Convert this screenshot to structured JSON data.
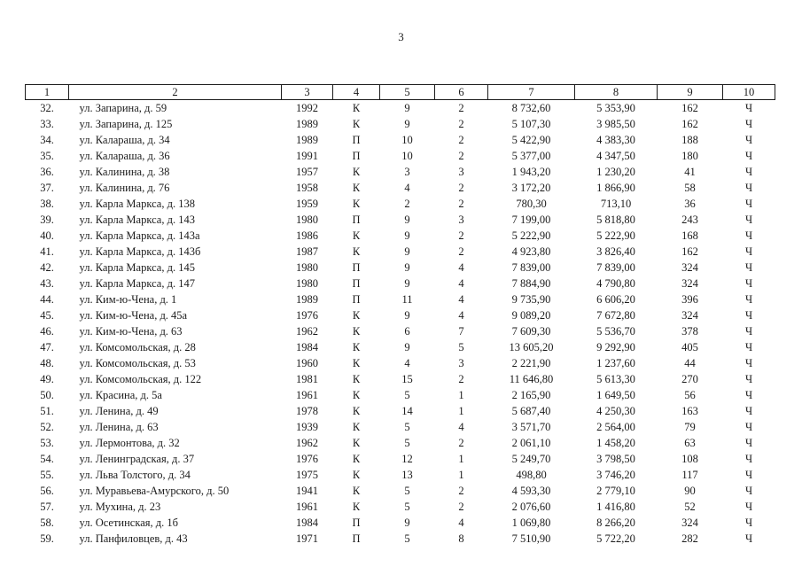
{
  "page": {
    "number": "3"
  },
  "table": {
    "columns": [
      "1",
      "2",
      "3",
      "4",
      "5",
      "6",
      "7",
      "8",
      "9",
      "10"
    ],
    "cell_names": [
      "row-number",
      "address",
      "year-built",
      "wall-material",
      "floors",
      "entrances",
      "total-area",
      "living-area",
      "residents",
      "ownership"
    ],
    "rows": [
      [
        "32.",
        "ул. Запарина, д. 59",
        "1992",
        "К",
        "9",
        "2",
        "8 732,60",
        "5 353,90",
        "162",
        "Ч"
      ],
      [
        "33.",
        "ул. Запарина, д. 125",
        "1989",
        "К",
        "9",
        "2",
        "5 107,30",
        "3 985,50",
        "162",
        "Ч"
      ],
      [
        "34.",
        "ул. Калараша, д. 34",
        "1989",
        "П",
        "10",
        "2",
        "5 422,90",
        "4 383,30",
        "188",
        "Ч"
      ],
      [
        "35.",
        "ул. Калараша, д. 36",
        "1991",
        "П",
        "10",
        "2",
        "5 377,00",
        "4 347,50",
        "180",
        "Ч"
      ],
      [
        "36.",
        "ул. Калинина, д. 38",
        "1957",
        "К",
        "3",
        "3",
        "1 943,20",
        "1 230,20",
        "41",
        "Ч"
      ],
      [
        "37.",
        "ул. Калинина, д. 76",
        "1958",
        "К",
        "4",
        "2",
        "3 172,20",
        "1 866,90",
        "58",
        "Ч"
      ],
      [
        "38.",
        "ул. Карла Маркса, д. 138",
        "1959",
        "К",
        "2",
        "2",
        "780,30",
        "713,10",
        "36",
        "Ч"
      ],
      [
        "39.",
        "ул. Карла Маркса, д. 143",
        "1980",
        "П",
        "9",
        "3",
        "7 199,00",
        "5 818,80",
        "243",
        "Ч"
      ],
      [
        "40.",
        "ул. Карла Маркса, д. 143а",
        "1986",
        "К",
        "9",
        "2",
        "5 222,90",
        "5 222,90",
        "168",
        "Ч"
      ],
      [
        "41.",
        "ул. Карла Маркса, д. 143б",
        "1987",
        "К",
        "9",
        "2",
        "4 923,80",
        "3 826,40",
        "162",
        "Ч"
      ],
      [
        "42.",
        "ул. Карла Маркса, д. 145",
        "1980",
        "П",
        "9",
        "4",
        "7 839,00",
        "7 839,00",
        "324",
        "Ч"
      ],
      [
        "43.",
        "ул. Карла Маркса, д. 147",
        "1980",
        "П",
        "9",
        "4",
        "7 884,90",
        "4 790,80",
        "324",
        "Ч"
      ],
      [
        "44.",
        "ул. Ким-ю-Чена, д. 1",
        "1989",
        "П",
        "11",
        "4",
        "9 735,90",
        "6 606,20",
        "396",
        "Ч"
      ],
      [
        "45.",
        "ул. Ким-ю-Чена, д. 45а",
        "1976",
        "К",
        "9",
        "4",
        "9 089,20",
        "7 672,80",
        "324",
        "Ч"
      ],
      [
        "46.",
        "ул. Ким-ю-Чена, д. 63",
        "1962",
        "К",
        "6",
        "7",
        "7 609,30",
        "5 536,70",
        "378",
        "Ч"
      ],
      [
        "47.",
        "ул. Комсомольская, д. 28",
        "1984",
        "К",
        "9",
        "5",
        "13 605,20",
        "9 292,90",
        "405",
        "Ч"
      ],
      [
        "48.",
        "ул. Комсомольская, д. 53",
        "1960",
        "К",
        "4",
        "3",
        "2 221,90",
        "1 237,60",
        "44",
        "Ч"
      ],
      [
        "49.",
        "ул. Комсомольская, д. 122",
        "1981",
        "К",
        "15",
        "2",
        "11 646,80",
        "5 613,30",
        "270",
        "Ч"
      ],
      [
        "50.",
        "ул. Красина, д. 5а",
        "1961",
        "К",
        "5",
        "1",
        "2 165,90",
        "1 649,50",
        "56",
        "Ч"
      ],
      [
        "51.",
        "ул. Ленина, д. 49",
        "1978",
        "К",
        "14",
        "1",
        "5 687,40",
        "4 250,30",
        "163",
        "Ч"
      ],
      [
        "52.",
        "ул. Ленина, д. 63",
        "1939",
        "К",
        "5",
        "4",
        "3 571,70",
        "2 564,00",
        "79",
        "Ч"
      ],
      [
        "53.",
        "ул. Лермонтова, д. 32",
        "1962",
        "К",
        "5",
        "2",
        "2 061,10",
        "1 458,20",
        "63",
        "Ч"
      ],
      [
        "54.",
        "ул. Ленинградская, д. 37",
        "1976",
        "К",
        "12",
        "1",
        "5 249,70",
        "3 798,50",
        "108",
        "Ч"
      ],
      [
        "55.",
        "ул. Льва Толстого, д. 34",
        "1975",
        "К",
        "13",
        "1",
        "498,80",
        "3 746,20",
        "117",
        "Ч"
      ],
      [
        "56.",
        "ул. Муравьева-Амурского, д. 50",
        "1941",
        "К",
        "5",
        "2",
        "4 593,30",
        "2 779,10",
        "90",
        "Ч"
      ],
      [
        "57.",
        "ул. Мухина, д. 23",
        "1961",
        "К",
        "5",
        "2",
        "2 076,60",
        "1 416,80",
        "52",
        "Ч"
      ],
      [
        "58.",
        "ул. Осетинская, д. 1б",
        "1984",
        "П",
        "9",
        "4",
        "1 069,80",
        "8 266,20",
        "324",
        "Ч"
      ],
      [
        "59.",
        "ул. Панфиловцев, д. 43",
        "1971",
        "П",
        "5",
        "8",
        "7 510,90",
        "5 722,20",
        "282",
        "Ч"
      ]
    ]
  }
}
